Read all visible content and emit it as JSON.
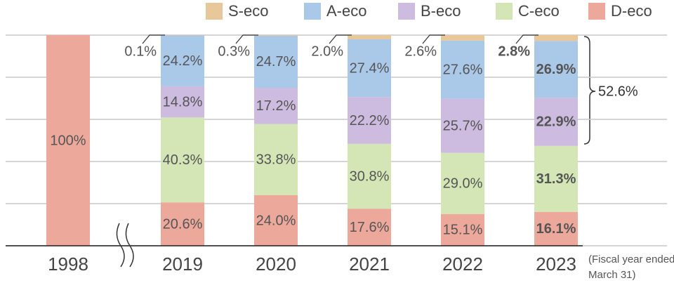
{
  "chart_data": {
    "type": "stacked_bar",
    "categories": [
      "1998",
      "2019",
      "2020",
      "2021",
      "2022",
      "2023"
    ],
    "series": [
      {
        "name": "S-eco",
        "color": "#e8c89a",
        "values": [
          null,
          0.1,
          0.3,
          2.0,
          2.6,
          2.8
        ],
        "value_labels": [
          null,
          "0.1%",
          "0.3%",
          "2.0%",
          "2.6%",
          "2.8%"
        ]
      },
      {
        "name": "A-eco",
        "color": "#aac8e8",
        "values": [
          null,
          24.2,
          24.7,
          27.4,
          27.6,
          26.9
        ],
        "value_labels": [
          null,
          "24.2%",
          "24.7%",
          "27.4%",
          "27.6%",
          "26.9%"
        ]
      },
      {
        "name": "B-eco",
        "color": "#cdbbe0",
        "values": [
          null,
          14.8,
          17.2,
          22.2,
          25.7,
          22.9
        ],
        "value_labels": [
          null,
          "14.8%",
          "17.2%",
          "22.2%",
          "25.7%",
          "22.9%"
        ]
      },
      {
        "name": "C-eco",
        "color": "#d4e6b5",
        "values": [
          null,
          40.3,
          33.8,
          30.8,
          29.0,
          31.3
        ],
        "value_labels": [
          null,
          "40.3%",
          "33.8%",
          "30.8%",
          "29.0%",
          "31.3%"
        ]
      },
      {
        "name": "D-eco",
        "color": "#eda89c",
        "values": [
          100,
          20.6,
          24.0,
          17.6,
          15.1,
          16.1
        ],
        "value_labels": [
          "100%",
          "20.6%",
          "24.0%",
          "17.6%",
          "15.1%",
          "16.1%"
        ]
      }
    ],
    "ylim": [
      0,
      100
    ],
    "yticks": [
      0,
      20,
      40,
      60,
      80,
      100
    ],
    "grid": true,
    "annotation": "52.6%",
    "footnote": [
      "(Fiscal year ended",
      "March 31)"
    ]
  }
}
